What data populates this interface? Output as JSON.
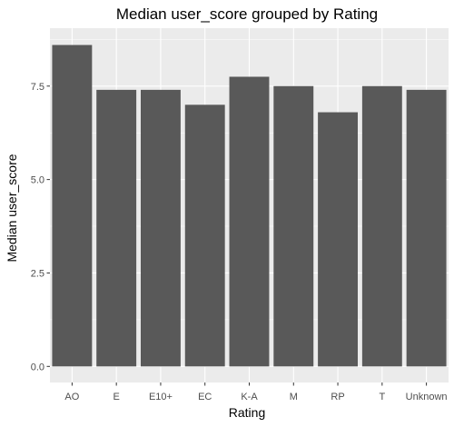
{
  "chart_data": {
    "type": "bar",
    "title": "Median user_score grouped by Rating",
    "xlabel": "Rating",
    "ylabel": "Median user_score",
    "categories": [
      "AO",
      "E",
      "E10+",
      "EC",
      "K-A",
      "M",
      "RP",
      "T",
      "Unknown"
    ],
    "values": [
      8.6,
      7.4,
      7.4,
      7.0,
      7.75,
      7.5,
      6.8,
      7.5,
      7.4
    ],
    "ylim": [
      -0.43,
      9.05
    ],
    "yticks": [
      0.0,
      2.5,
      5.0,
      7.5
    ],
    "ytick_labels": [
      "0.0",
      "2.5",
      "5.0",
      "7.5"
    ],
    "grid": true,
    "legend": "none",
    "colors": {
      "bar": "#595959",
      "panel": "#ebebeb",
      "grid": "#ffffff",
      "tick_text": "#4d4d4d",
      "tick_mark": "#333333"
    }
  }
}
